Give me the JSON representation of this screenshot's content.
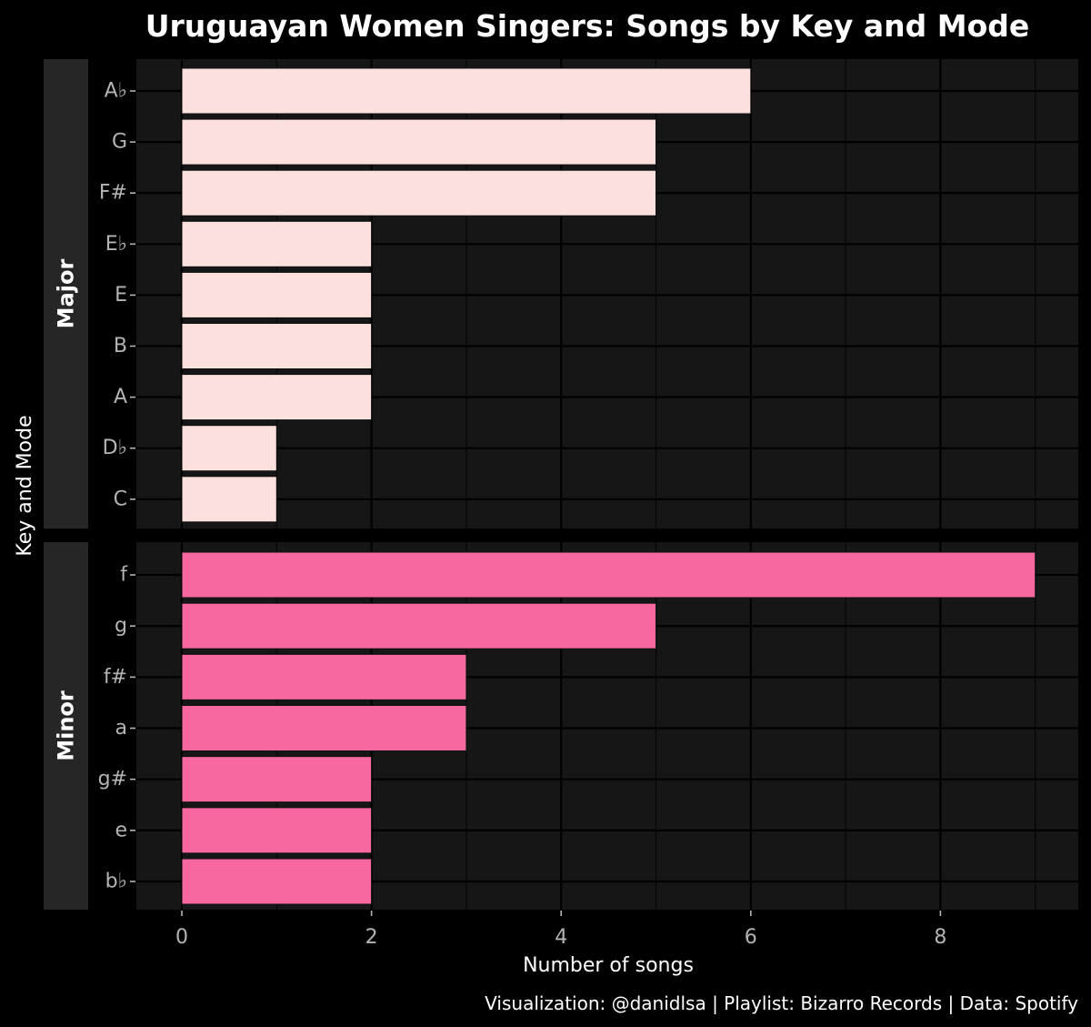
{
  "chart_data": {
    "type": "bar",
    "orientation": "horizontal",
    "title": "Uruguayan Women Singers: Songs by Key and Mode",
    "xlabel": "Number of songs",
    "ylabel": "Key and Mode",
    "caption": "Visualization: @danidlsa | Playlist: Bizarro Records | Data: Spotify",
    "xlim": [
      0,
      9
    ],
    "x_ticks": [
      0,
      2,
      4,
      6,
      8
    ],
    "grid": true,
    "background": "#161616",
    "facets": [
      {
        "name": "Major",
        "color": "#fce0dd",
        "categories": [
          "A♭",
          "G",
          "F#",
          "E♭",
          "E",
          "B",
          "A",
          "D♭",
          "C"
        ],
        "values": [
          6,
          5,
          5,
          2,
          2,
          2,
          2,
          1,
          1
        ]
      },
      {
        "name": "Minor",
        "color": "#f768a1",
        "categories": [
          "f",
          "g",
          "f#",
          "a",
          "g#",
          "e",
          "b♭"
        ],
        "values": [
          9,
          5,
          3,
          3,
          2,
          2,
          2
        ]
      }
    ]
  }
}
